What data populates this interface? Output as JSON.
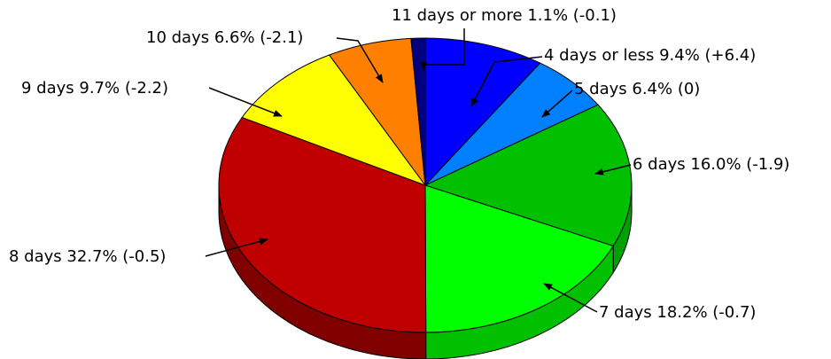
{
  "chart_data": {
    "type": "pie",
    "style": "3d",
    "title": "",
    "slices": [
      {
        "label": "4 days or less",
        "value": 9.4,
        "change": "+6.4",
        "text": "4 days or less 9.4% (+6.4)",
        "color": "#0000ff",
        "side_color": "#000080"
      },
      {
        "label": "5 days",
        "value": 6.4,
        "change": "0",
        "text": "5 days 6.4% (0)",
        "color": "#0080ff",
        "side_color": "#004080"
      },
      {
        "label": "6 days",
        "value": 16.0,
        "change": "-1.9",
        "text": "6 days 16.0% (-1.9)",
        "color": "#00c000",
        "side_color": "#00a000"
      },
      {
        "label": "7 days",
        "value": 18.2,
        "change": "-0.7",
        "text": "7 days 18.2% (-0.7)",
        "color": "#00ff00",
        "side_color": "#00c000"
      },
      {
        "label": "8 days",
        "value": 32.7,
        "change": "-0.5",
        "text": "8 days 32.7% (-0.5)",
        "color": "#c00000",
        "side_color": "#800000"
      },
      {
        "label": "9 days",
        "value": 9.7,
        "change": "-2.2",
        "text": "9 days 9.7% (-2.2)",
        "color": "#ffff00",
        "side_color": "#c0c000"
      },
      {
        "label": "10 days",
        "value": 6.6,
        "change": "-2.1",
        "text": "10 days 6.6% (-2.1)",
        "color": "#ff8000",
        "side_color": "#c06000"
      },
      {
        "label": "11 days or more",
        "value": 1.1,
        "change": "-0.1",
        "text": "11 days or more 1.1% (-0.1)",
        "color": "#000080",
        "side_color": "#000040"
      }
    ]
  }
}
